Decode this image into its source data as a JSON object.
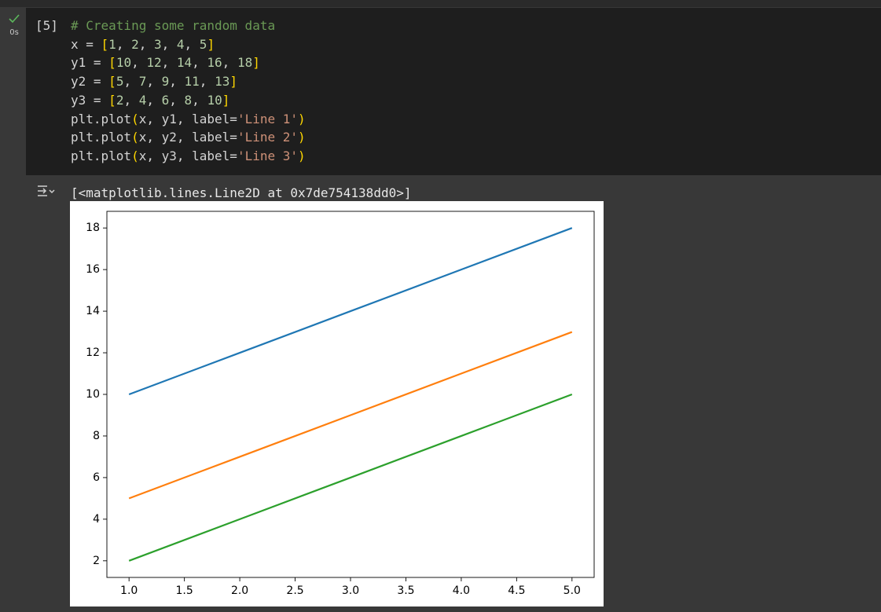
{
  "cell": {
    "status": "0s",
    "exec_count": "[5]",
    "code": [
      "# Creating some random data",
      "x = [1, 2, 3, 4, 5]",
      "y1 = [10, 12, 14, 16, 18]",
      "y2 = [5, 7, 9, 11, 13]",
      "y3 = [2, 4, 6, 8, 10]",
      "plt.plot(x, y1, label='Line 1')",
      "plt.plot(x, y2, label='Line 2')",
      "plt.plot(x, y3, label='Line 3')"
    ]
  },
  "output": {
    "text": "[<matplotlib.lines.Line2D at 0x7de754138dd0>]"
  },
  "chart_data": {
    "type": "line",
    "x": [
      1,
      2,
      3,
      4,
      5
    ],
    "series": [
      {
        "color": "#1f77b4",
        "values": [
          10,
          12,
          14,
          16,
          18
        ]
      },
      {
        "color": "#ff7f0e",
        "values": [
          5,
          7,
          9,
          11,
          13
        ]
      },
      {
        "color": "#2ca02c",
        "values": [
          2,
          4,
          6,
          8,
          10
        ]
      }
    ],
    "xlim": [
      0.8,
      5.2
    ],
    "xticks": [
      {
        "value": 1,
        "label": "1.0"
      },
      {
        "value": 1.5,
        "label": "1.5"
      },
      {
        "value": 2,
        "label": "2.0"
      },
      {
        "value": 2.5,
        "label": "2.5"
      },
      {
        "value": 3,
        "label": "3.0"
      },
      {
        "value": 3.5,
        "label": "3.5"
      },
      {
        "value": 4,
        "label": "4.0"
      },
      {
        "value": 4.5,
        "label": "4.5"
      },
      {
        "value": 5,
        "label": "5.0"
      }
    ],
    "ylim": [
      1.2,
      18.8
    ],
    "yticks": [
      2,
      4,
      6,
      8,
      10,
      12,
      14,
      16,
      18
    ],
    "grid": false
  }
}
